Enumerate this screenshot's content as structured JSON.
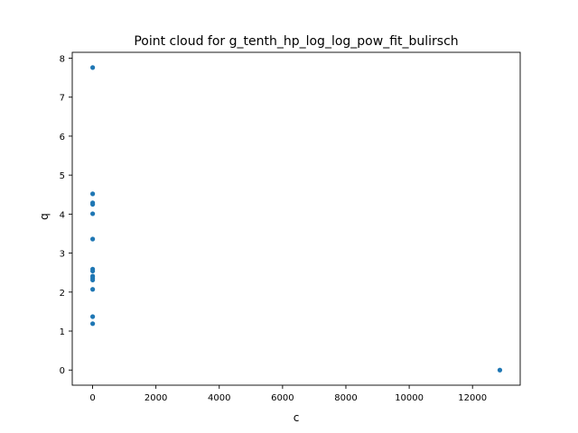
{
  "chart_data": {
    "type": "scatter",
    "title": "Point cloud for g_tenth_hp_log_log_pow_fit_bulirsch",
    "xlabel": "c",
    "ylabel": "q",
    "xlim": [
      -643,
      13506
    ],
    "ylim": [
      -0.388,
      8.15
    ],
    "xticks": [
      0,
      2000,
      4000,
      6000,
      8000,
      10000,
      12000
    ],
    "yticks": [
      0,
      1,
      2,
      3,
      4,
      5,
      6,
      7,
      8
    ],
    "grid": false,
    "color": "#1f77b4",
    "series": [
      {
        "x": [
          2,
          2,
          2,
          2,
          2,
          2,
          2,
          2,
          2,
          2,
          2,
          2,
          2,
          2,
          12863
        ],
        "y": [
          7.76,
          4.52,
          4.29,
          4.25,
          4.01,
          3.36,
          2.59,
          2.54,
          2.41,
          2.36,
          2.31,
          2.07,
          1.37,
          1.19,
          0.0
        ]
      }
    ]
  }
}
